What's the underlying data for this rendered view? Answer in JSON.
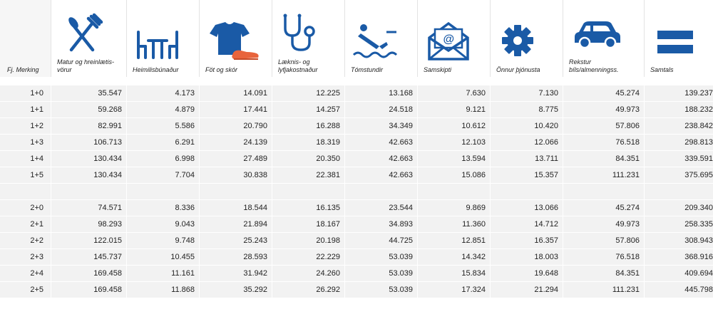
{
  "colors": {
    "icon_blue": "#1a5aa6",
    "icon_orange": "#e8643c",
    "cell_bg": "#f2f2f2"
  },
  "header": {
    "first": "Fj. Merking",
    "columns": [
      {
        "icon": "fork-knife-icon",
        "label": "Matur og hreinlætis-vörur"
      },
      {
        "icon": "table-chairs-icon",
        "label": "Heimilisbúnaður"
      },
      {
        "icon": "shirt-shoe-icon",
        "label": "Föt og skór"
      },
      {
        "icon": "stethoscope-icon",
        "label": "Læknis- og lyfjakostnaður"
      },
      {
        "icon": "diver-icon",
        "label": "Tómstundir"
      },
      {
        "icon": "mail-icon",
        "label": "Samskipti"
      },
      {
        "icon": "gear-icon",
        "label": "Önnur þjónusta"
      },
      {
        "icon": "car-icon",
        "label": "Rekstur bíls/almenningss."
      },
      {
        "icon": "equals-icon",
        "label": "Samtals"
      }
    ]
  },
  "groups": [
    {
      "rows": [
        {
          "label": "1+0",
          "values": [
            "35.547",
            "4.173",
            "14.091",
            "12.225",
            "13.168",
            "7.630",
            "7.130",
            "45.274",
            "139.237"
          ]
        },
        {
          "label": "1+1",
          "values": [
            "59.268",
            "4.879",
            "17.441",
            "14.257",
            "24.518",
            "9.121",
            "8.775",
            "49.973",
            "188.232"
          ]
        },
        {
          "label": "1+2",
          "values": [
            "82.991",
            "5.586",
            "20.790",
            "16.288",
            "34.349",
            "10.612",
            "10.420",
            "57.806",
            "238.842"
          ]
        },
        {
          "label": "1+3",
          "values": [
            "106.713",
            "6.291",
            "24.139",
            "18.319",
            "42.663",
            "12.103",
            "12.066",
            "76.518",
            "298.813"
          ]
        },
        {
          "label": "1+4",
          "values": [
            "130.434",
            "6.998",
            "27.489",
            "20.350",
            "42.663",
            "13.594",
            "13.711",
            "84.351",
            "339.591"
          ]
        },
        {
          "label": "1+5",
          "values": [
            "130.434",
            "7.704",
            "30.838",
            "22.381",
            "42.663",
            "15.086",
            "15.357",
            "111.231",
            "375.695"
          ]
        }
      ]
    },
    {
      "rows": [
        {
          "label": "2+0",
          "values": [
            "74.571",
            "8.336",
            "18.544",
            "16.135",
            "23.544",
            "9.869",
            "13.066",
            "45.274",
            "209.340"
          ]
        },
        {
          "label": "2+1",
          "values": [
            "98.293",
            "9.043",
            "21.894",
            "18.167",
            "34.893",
            "11.360",
            "14.712",
            "49.973",
            "258.335"
          ]
        },
        {
          "label": "2+2",
          "values": [
            "122.015",
            "9.748",
            "25.243",
            "20.198",
            "44.725",
            "12.851",
            "16.357",
            "57.806",
            "308.943"
          ]
        },
        {
          "label": "2+3",
          "values": [
            "145.737",
            "10.455",
            "28.593",
            "22.229",
            "53.039",
            "14.342",
            "18.003",
            "76.518",
            "368.916"
          ]
        },
        {
          "label": "2+4",
          "values": [
            "169.458",
            "11.161",
            "31.942",
            "24.260",
            "53.039",
            "15.834",
            "19.648",
            "84.351",
            "409.694"
          ]
        },
        {
          "label": "2+5",
          "values": [
            "169.458",
            "11.868",
            "35.292",
            "26.292",
            "53.039",
            "17.324",
            "21.294",
            "111.231",
            "445.798"
          ]
        }
      ]
    }
  ]
}
